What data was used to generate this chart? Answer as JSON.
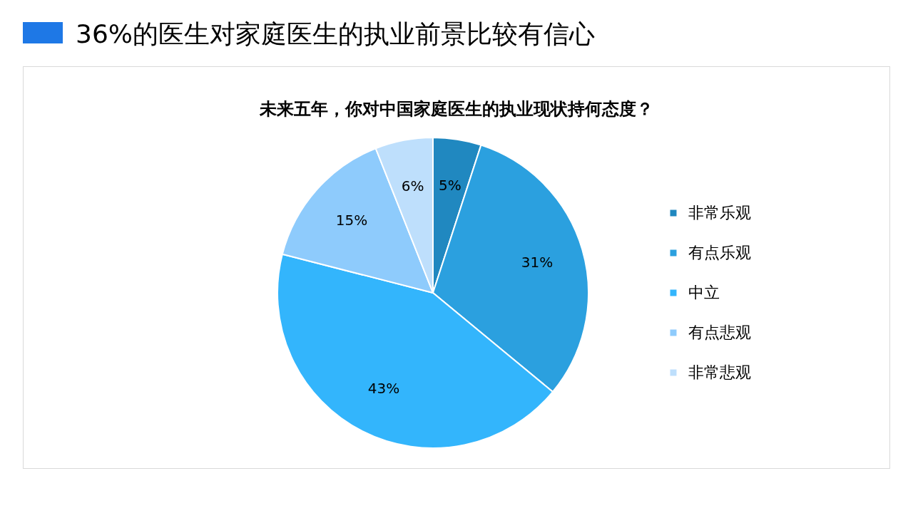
{
  "chart_data": {
    "type": "pie",
    "title": "36%的医生对家庭医生的执业前景比较有信心",
    "subtitle": "未来五年，你对中国家庭医生的执业现状持何态度？",
    "categories": [
      "非常乐观",
      "有点乐观",
      "中立",
      "有点悲观",
      "非常悲观"
    ],
    "values": [
      5,
      31,
      43,
      15,
      6
    ],
    "value_labels": [
      "5%",
      "31%",
      "43%",
      "15%",
      "6%"
    ],
    "colors": [
      "#2088c0",
      "#2ba0df",
      "#33b5fc",
      "#8ecbfc",
      "#bedffc"
    ],
    "legend": "right"
  }
}
